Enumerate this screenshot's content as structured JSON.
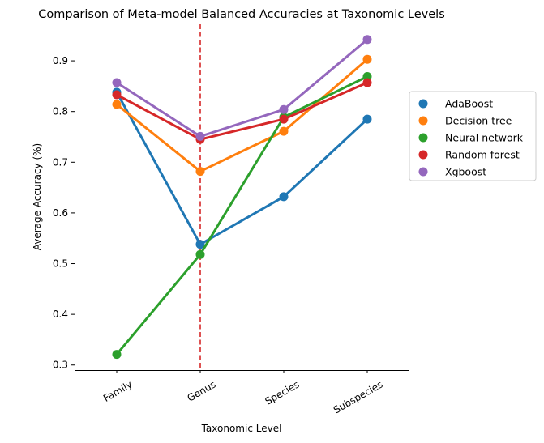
{
  "chart_data": {
    "type": "line",
    "title": "Comparison of Meta-model Balanced Accuracies at Taxonomic Levels",
    "xlabel": "Taxonomic Level",
    "ylabel": "Average Accuracy (%)",
    "categories": [
      "Family",
      "Genus",
      "Species",
      "Subspecies"
    ],
    "ylim": [
      0.29,
      0.972
    ],
    "yticks": [
      "0.3",
      "0.4",
      "0.5",
      "0.6",
      "0.7",
      "0.8",
      "0.9"
    ],
    "grid": false,
    "legend_position": "center-right outside",
    "reference_line": {
      "category": "Genus",
      "style": "dashed",
      "color": "#d62728"
    },
    "series": [
      {
        "name": "AdaBoost",
        "color": "#1f77b4",
        "values": [
          0.838,
          0.538,
          0.632,
          0.785
        ]
      },
      {
        "name": "Decision tree",
        "color": "#ff7f0e",
        "values": [
          0.814,
          0.682,
          0.761,
          0.903
        ]
      },
      {
        "name": "Neural network",
        "color": "#2ca02c",
        "values": [
          0.321,
          0.518,
          0.789,
          0.869
        ]
      },
      {
        "name": "Random forest",
        "color": "#d62728",
        "values": [
          0.833,
          0.745,
          0.785,
          0.857
        ]
      },
      {
        "name": "Xgboost",
        "color": "#9467bd",
        "values": [
          0.857,
          0.751,
          0.804,
          0.942
        ]
      }
    ]
  }
}
